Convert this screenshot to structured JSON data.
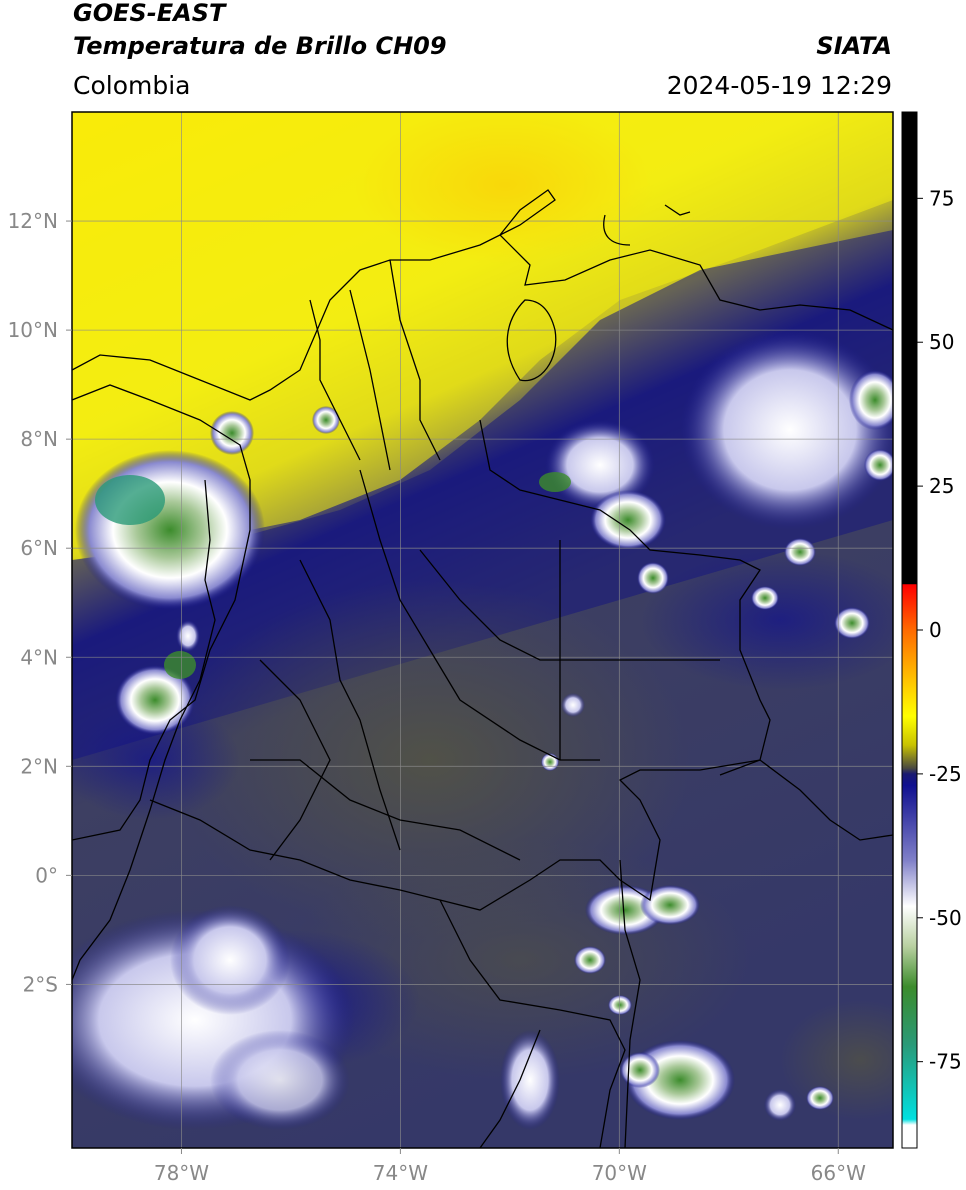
{
  "header": {
    "satellite": "GOES-EAST",
    "product": "Temperatura de Brillo CH09",
    "region": "Colombia",
    "agency": "SIATA",
    "datetime": "2024-05-19 12:29"
  },
  "map": {
    "lon_range": [
      -80,
      -65
    ],
    "lat_range": [
      -5,
      14
    ],
    "lon_ticks": [
      {
        "value": -78,
        "label": "78°W"
      },
      {
        "value": -74,
        "label": "74°W"
      },
      {
        "value": -70,
        "label": "70°W"
      },
      {
        "value": -66,
        "label": "66°W"
      }
    ],
    "lat_ticks": [
      {
        "value": 12,
        "label": "12°N"
      },
      {
        "value": 10,
        "label": "10°N"
      },
      {
        "value": 8,
        "label": "8°N"
      },
      {
        "value": 6,
        "label": "6°N"
      },
      {
        "value": 4,
        "label": "4°N"
      },
      {
        "value": 2,
        "label": "2°N"
      },
      {
        "value": 0,
        "label": "0°"
      },
      {
        "value": -2,
        "label": "2°S"
      }
    ],
    "grid": true
  },
  "colorbar": {
    "range": [
      -90,
      90
    ],
    "ticks": [
      {
        "value": 75,
        "label": "75"
      },
      {
        "value": 50,
        "label": "50"
      },
      {
        "value": 25,
        "label": "25"
      },
      {
        "value": 0,
        "label": "0"
      },
      {
        "value": -25,
        "label": "-25"
      },
      {
        "value": -50,
        "label": "-50"
      },
      {
        "value": -75,
        "label": "-75"
      }
    ],
    "stops": [
      {
        "v": 90,
        "c": "#000000"
      },
      {
        "v": 8,
        "c": "#000000"
      },
      {
        "v": 7.9,
        "c": "#ff0000"
      },
      {
        "v": 0,
        "c": "#ff6a00"
      },
      {
        "v": -10,
        "c": "#ffd000"
      },
      {
        "v": -15,
        "c": "#ffff00"
      },
      {
        "v": -20,
        "c": "#c8c200"
      },
      {
        "v": -24,
        "c": "#4a4a40"
      },
      {
        "v": -25,
        "c": "#1a1a70"
      },
      {
        "v": -27,
        "c": "#101090"
      },
      {
        "v": -40,
        "c": "#8080c8"
      },
      {
        "v": -48,
        "c": "#ffffff"
      },
      {
        "v": -55,
        "c": "#b8d0a0"
      },
      {
        "v": -62,
        "c": "#3c8c2c"
      },
      {
        "v": -72,
        "c": "#2a9a78"
      },
      {
        "v": -85,
        "c": "#00e0e0"
      },
      {
        "v": -86,
        "c": "#ffffff"
      },
      {
        "v": -90,
        "c": "#ffffff"
      }
    ]
  }
}
